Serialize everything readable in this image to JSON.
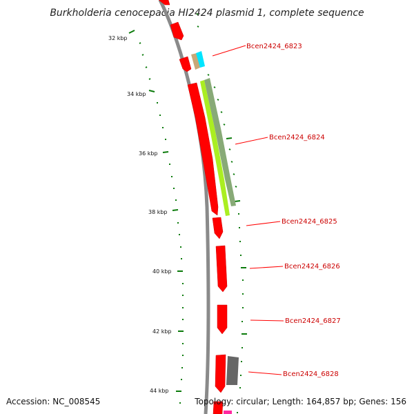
{
  "title": "Burkholderia cenocepacia HI2424 plasmid 1, complete sequence",
  "accession": "Accession: NC_008545",
  "topology": "Topology: circular; Length: 164,857 bp; Genes: 156",
  "tick_labels": [
    "32 kbp",
    "34 kbp",
    "36 kbp",
    "38 kbp",
    "40 kbp",
    "42 kbp",
    "44 kbp"
  ],
  "gene_labels": [
    "Bcen2424_6823",
    "Bcen2424_6824",
    "Bcen2424_6825",
    "Bcen2424_6826",
    "Bcen2424_6827",
    "Bcen2424_6828"
  ],
  "colors": {
    "backbone": "#8a8a8a",
    "gene": "#ff0000",
    "tick": "#0a7a0a",
    "label_line": "#ff0000",
    "label_text": "#cc0000",
    "feature_cyan": "#00e5ff",
    "feature_tan": "#c8a878",
    "feature_lime": "#aaee22",
    "feature_sage": "#88aa77",
    "feature_grey": "#666666",
    "feature_magenta": "#ff2aa0"
  }
}
